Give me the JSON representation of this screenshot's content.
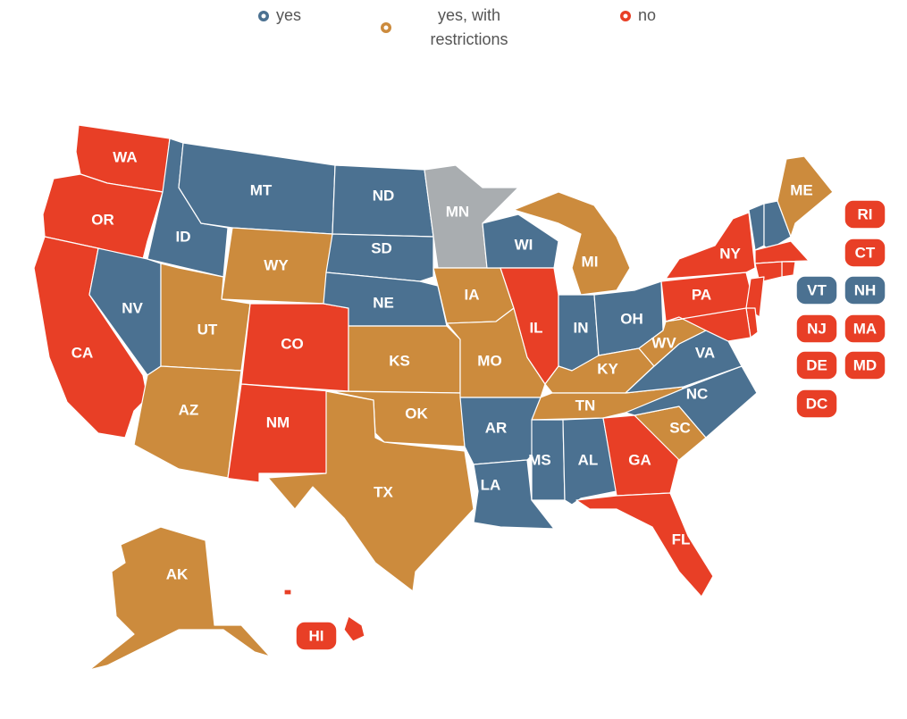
{
  "legend": [
    {
      "label": "yes",
      "color": "#4b7191"
    },
    {
      "label": "yes, with restrictions",
      "color": "#cc8b3d"
    },
    {
      "label": "no",
      "color": "#e83f26"
    }
  ],
  "no_data_color": "#a9adb0",
  "states": [
    {
      "label": "WA",
      "status": 2
    },
    {
      "label": "OR",
      "status": 2
    },
    {
      "label": "CA",
      "status": 2
    },
    {
      "label": "NV",
      "status": 0
    },
    {
      "label": "ID",
      "status": 0
    },
    {
      "label": "MT",
      "status": 0
    },
    {
      "label": "WY",
      "status": 1
    },
    {
      "label": "UT",
      "status": 1
    },
    {
      "label": "AZ",
      "status": 1
    },
    {
      "label": "CO",
      "status": 2
    },
    {
      "label": "NM",
      "status": 2
    },
    {
      "label": "ND",
      "status": 0
    },
    {
      "label": "SD",
      "status": 0
    },
    {
      "label": "NE",
      "status": 0
    },
    {
      "label": "KS",
      "status": 1
    },
    {
      "label": "OK",
      "status": 1
    },
    {
      "label": "TX",
      "status": 1
    },
    {
      "label": "MN",
      "status": null
    },
    {
      "label": "IA",
      "status": 1
    },
    {
      "label": "MO",
      "status": 1
    },
    {
      "label": "AR",
      "status": 0
    },
    {
      "label": "LA",
      "status": 0
    },
    {
      "label": "WI",
      "status": 0
    },
    {
      "label": "IL",
      "status": 2
    },
    {
      "label": "MI",
      "status": 1
    },
    {
      "label": "IN",
      "status": 0
    },
    {
      "label": "OH",
      "status": 0
    },
    {
      "label": "KY",
      "status": 1
    },
    {
      "label": "TN",
      "status": 1
    },
    {
      "label": "MS",
      "status": 0
    },
    {
      "label": "AL",
      "status": 0
    },
    {
      "label": "GA",
      "status": 2
    },
    {
      "label": "FL",
      "status": 2
    },
    {
      "label": "SC",
      "status": 1
    },
    {
      "label": "NC",
      "status": 0
    },
    {
      "label": "VA",
      "status": 0
    },
    {
      "label": "WV",
      "status": 1
    },
    {
      "label": "PA",
      "status": 2
    },
    {
      "label": "NY",
      "status": 2
    },
    {
      "label": "VT",
      "status": 0
    },
    {
      "label": "NH",
      "status": 0
    },
    {
      "label": "ME",
      "status": 1
    },
    {
      "label": "MA",
      "status": 2
    },
    {
      "label": "RI",
      "status": 2
    },
    {
      "label": "CT",
      "status": 2
    },
    {
      "label": "NJ",
      "status": 2
    },
    {
      "label": "DE",
      "status": 2
    },
    {
      "label": "MD",
      "status": 2
    },
    {
      "label": "DC",
      "status": 2
    },
    {
      "label": "AK",
      "status": 1
    },
    {
      "label": "HI",
      "status": 2
    }
  ]
}
